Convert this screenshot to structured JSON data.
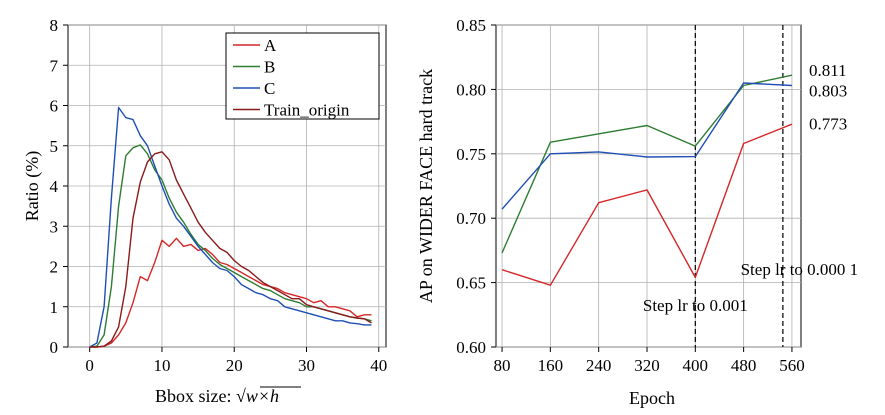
{
  "chart_data": [
    {
      "type": "line",
      "xlabel": "Bbox size: ",
      "xlabel_math": "√w×h",
      "ylabel": "Ratio (%)",
      "xlim": [
        -3,
        41
      ],
      "ylim": [
        0,
        8
      ],
      "xticks": [
        0,
        10,
        20,
        30,
        40
      ],
      "yticks": [
        0,
        1,
        2,
        3,
        4,
        5,
        6,
        7,
        8
      ],
      "legend_position": "top-right",
      "series": [
        {
          "name": "A",
          "color": "#d62728",
          "x": [
            0,
            1,
            2,
            3,
            4,
            5,
            6,
            7,
            8,
            9,
            10,
            11,
            12,
            13,
            14,
            15,
            16,
            17,
            18,
            19,
            20,
            21,
            22,
            23,
            24,
            25,
            26,
            27,
            28,
            29,
            30,
            31,
            32,
            33,
            34,
            35,
            36,
            37,
            38,
            39
          ],
          "y": [
            0,
            0,
            0.02,
            0.1,
            0.3,
            0.6,
            1.1,
            1.75,
            1.65,
            2.1,
            2.65,
            2.5,
            2.7,
            2.5,
            2.55,
            2.4,
            2.45,
            2.3,
            2.1,
            2.05,
            1.95,
            1.85,
            1.75,
            1.65,
            1.55,
            1.5,
            1.45,
            1.35,
            1.3,
            1.25,
            1.2,
            1.1,
            1.15,
            1.0,
            1.0,
            0.95,
            0.9,
            0.75,
            0.8,
            0.8
          ]
        },
        {
          "name": "B",
          "color": "#2e7d32",
          "x": [
            0,
            1,
            2,
            3,
            4,
            5,
            6,
            7,
            8,
            9,
            10,
            11,
            12,
            13,
            14,
            15,
            16,
            17,
            18,
            19,
            20,
            21,
            22,
            23,
            24,
            25,
            26,
            27,
            28,
            29,
            30,
            31,
            32,
            33,
            34,
            35,
            36,
            37,
            38,
            39
          ],
          "y": [
            0,
            0.02,
            0.3,
            1.5,
            3.5,
            4.75,
            4.95,
            5.02,
            4.8,
            4.4,
            4.15,
            3.7,
            3.35,
            3.1,
            2.8,
            2.55,
            2.4,
            2.2,
            2.05,
            1.95,
            1.85,
            1.75,
            1.65,
            1.55,
            1.45,
            1.4,
            1.3,
            1.2,
            1.15,
            1.1,
            1.0,
            1.0,
            0.95,
            0.9,
            0.85,
            0.8,
            0.75,
            0.72,
            0.7,
            0.65
          ]
        },
        {
          "name": "C",
          "color": "#1f4fb5",
          "x": [
            0,
            1,
            2,
            3,
            4,
            5,
            6,
            7,
            8,
            9,
            10,
            11,
            12,
            13,
            14,
            15,
            16,
            17,
            18,
            19,
            20,
            21,
            22,
            23,
            24,
            25,
            26,
            27,
            28,
            29,
            30,
            31,
            32,
            33,
            34,
            35,
            36,
            37,
            38,
            39
          ],
          "y": [
            0,
            0.1,
            1.0,
            3.7,
            5.95,
            5.7,
            5.65,
            5.25,
            5.0,
            4.5,
            4.0,
            3.55,
            3.2,
            3.0,
            2.75,
            2.5,
            2.3,
            2.1,
            1.95,
            1.9,
            1.75,
            1.55,
            1.45,
            1.35,
            1.3,
            1.2,
            1.15,
            1.0,
            0.95,
            0.9,
            0.85,
            0.8,
            0.75,
            0.7,
            0.65,
            0.65,
            0.6,
            0.58,
            0.55,
            0.55
          ]
        },
        {
          "name": "Train_origin",
          "color": "#8b1a1a",
          "x": [
            0,
            1,
            2,
            3,
            4,
            5,
            6,
            7,
            8,
            9,
            10,
            11,
            12,
            13,
            14,
            15,
            16,
            17,
            18,
            19,
            20,
            21,
            22,
            23,
            24,
            25,
            26,
            27,
            28,
            29,
            30,
            31,
            32,
            33,
            34,
            35,
            36,
            37,
            38,
            39
          ],
          "y": [
            0,
            0,
            0.02,
            0.15,
            0.5,
            1.5,
            3.2,
            4.1,
            4.6,
            4.8,
            4.85,
            4.65,
            4.15,
            3.8,
            3.45,
            3.1,
            2.85,
            2.65,
            2.45,
            2.35,
            2.15,
            2.0,
            1.9,
            1.75,
            1.6,
            1.5,
            1.4,
            1.3,
            1.2,
            1.2,
            1.05,
            1.0,
            0.95,
            0.9,
            0.85,
            0.8,
            0.75,
            0.72,
            0.7,
            0.6
          ]
        }
      ]
    },
    {
      "type": "line",
      "xlabel": "Epoch",
      "ylabel": "AP on WIDER FACE hard track",
      "xlim": [
        70,
        575
      ],
      "ylim": [
        0.6,
        0.85
      ],
      "xticks": [
        80,
        160,
        240,
        320,
        400,
        480,
        560
      ],
      "yticks": [
        "0.60",
        "0.65",
        "0.70",
        "0.75",
        "0.80",
        "0.85"
      ],
      "series": [
        {
          "color": "#2e7d32",
          "x": [
            80,
            160,
            320,
            400,
            480,
            560
          ],
          "y": [
            0.673,
            0.759,
            0.772,
            0.756,
            0.803,
            0.811
          ]
        },
        {
          "color": "#1f4fb5",
          "x": [
            80,
            160,
            240,
            320,
            400,
            480,
            560
          ],
          "y": [
            0.707,
            0.75,
            0.7515,
            0.7475,
            0.7478,
            0.805,
            0.803
          ]
        },
        {
          "color": "#d62728",
          "x": [
            80,
            160,
            240,
            320,
            400,
            480,
            560
          ],
          "y": [
            0.66,
            0.648,
            0.712,
            0.722,
            0.654,
            0.758,
            0.773
          ]
        }
      ],
      "end_labels": [
        {
          "text": "0.811",
          "y": 0.815
        },
        {
          "text": "0.803",
          "y": 0.799
        },
        {
          "text": "0.773",
          "y": 0.7735
        }
      ],
      "vlines": [
        {
          "x": 400,
          "label": "Step lr to 0.001",
          "label_x": 400,
          "label_y": 0.628
        },
        {
          "x": 545,
          "label": "Step lr to 0.000 1",
          "label_x": 475,
          "label_y": 0.656
        }
      ]
    }
  ]
}
